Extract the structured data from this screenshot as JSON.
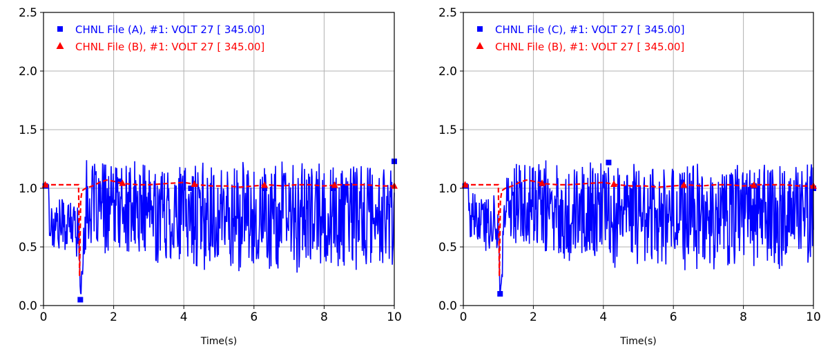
{
  "chart_data": [
    {
      "type": "line",
      "title": "",
      "xlabel": "Time(s)",
      "ylabel": "",
      "xlim": [
        0,
        10
      ],
      "ylim": [
        0,
        2.5
      ],
      "xticks": [
        0,
        2,
        4,
        6,
        8,
        10
      ],
      "xtick_labels": [
        "0",
        "2",
        "4",
        "6",
        "8",
        "10"
      ],
      "yticks": [
        0.0,
        0.5,
        1.0,
        1.5,
        2.0,
        2.5
      ],
      "ytick_labels": [
        "0.0",
        "0.5",
        "1.0",
        "1.5",
        "2.0",
        "2.5"
      ],
      "grid": true,
      "legend_position": "top-left",
      "series": [
        {
          "name": "CHNL File (A), #1: VOLT 27 [ 345.00]",
          "color": "#0000ff",
          "marker": "square",
          "linestyle": "solid",
          "noise_band": {
            "t": [
              0.0,
              0.2,
              1.0,
              1.05,
              1.2,
              2.0,
              4.0,
              6.0,
              8.0,
              10.0
            ],
            "center": [
              1.03,
              0.7,
              0.68,
              0.05,
              0.85,
              0.82,
              0.78,
              0.76,
              0.76,
              0.76
            ],
            "amplitude": [
              0.0,
              0.22,
              0.22,
              0.0,
              0.35,
              0.38,
              0.42,
              0.44,
              0.44,
              0.44
            ]
          },
          "markers": [
            [
              0.05,
              1.02
            ],
            [
              1.05,
              0.05
            ],
            [
              2.15,
              1.06
            ],
            [
              4.2,
              1.0
            ],
            [
              6.3,
              1.0
            ],
            [
              8.25,
              1.0
            ],
            [
              10.0,
              1.23
            ]
          ]
        },
        {
          "name": "CHNL File (B), #1: VOLT 27 [ 345.00]",
          "color": "#ff0000",
          "marker": "triangle",
          "linestyle": "dashed",
          "x": [
            0.0,
            1.0,
            1.03,
            1.06,
            1.1,
            1.2,
            1.4,
            1.6,
            1.8,
            2.0,
            2.3,
            2.7,
            3.0,
            3.5,
            4.0,
            4.4,
            4.8,
            5.2,
            5.6,
            6.0,
            6.4,
            6.8,
            7.2,
            7.6,
            8.0,
            8.4,
            8.8,
            9.2,
            9.6,
            10.0
          ],
          "y": [
            1.03,
            1.03,
            0.25,
            0.9,
            0.98,
            1.0,
            1.02,
            1.05,
            1.07,
            1.06,
            1.04,
            1.03,
            1.03,
            1.04,
            1.05,
            1.03,
            1.02,
            1.02,
            1.01,
            1.02,
            1.03,
            1.02,
            1.03,
            1.03,
            1.02,
            1.03,
            1.03,
            1.03,
            1.02,
            1.02
          ],
          "marker_x": [
            0.05,
            2.25,
            4.3,
            6.3,
            8.3,
            10.0
          ]
        }
      ]
    },
    {
      "type": "line",
      "title": "",
      "xlabel": "Time(s)",
      "ylabel": "",
      "xlim": [
        0,
        10
      ],
      "ylim": [
        0,
        2.5
      ],
      "xticks": [
        0,
        2,
        4,
        6,
        8,
        10
      ],
      "xtick_labels": [
        "0",
        "2",
        "4",
        "6",
        "8",
        "10"
      ],
      "yticks": [
        0.0,
        0.5,
        1.0,
        1.5,
        2.0,
        2.5
      ],
      "ytick_labels": [
        "0.0",
        "0.5",
        "1.0",
        "1.5",
        "2.0",
        "2.5"
      ],
      "grid": true,
      "legend_position": "top-left",
      "series": [
        {
          "name": "CHNL File (C), #1: VOLT 27 [ 345.00]",
          "color": "#0000ff",
          "marker": "square",
          "linestyle": "solid",
          "noise_band": {
            "t": [
              0.0,
              0.2,
              1.0,
              1.05,
              1.2,
              2.0,
              4.0,
              6.0,
              8.0,
              10.0
            ],
            "center": [
              1.03,
              0.72,
              0.7,
              0.08,
              0.86,
              0.84,
              0.8,
              0.79,
              0.79,
              0.79
            ],
            "amplitude": [
              0.0,
              0.2,
              0.2,
              0.0,
              0.33,
              0.36,
              0.42,
              0.44,
              0.44,
              0.44
            ]
          },
          "markers": [
            [
              0.05,
              1.02
            ],
            [
              1.05,
              0.1
            ],
            [
              2.2,
              1.04
            ],
            [
              4.15,
              1.22
            ],
            [
              6.25,
              1.05
            ],
            [
              8.3,
              1.02
            ],
            [
              10.0,
              1.0
            ]
          ]
        },
        {
          "name": "CHNL File (B), #1: VOLT 27 [ 345.00]",
          "color": "#ff0000",
          "marker": "triangle",
          "linestyle": "dashed",
          "x": [
            0.0,
            1.0,
            1.03,
            1.06,
            1.1,
            1.2,
            1.4,
            1.6,
            1.8,
            2.0,
            2.3,
            2.7,
            3.0,
            3.5,
            4.0,
            4.4,
            4.8,
            5.2,
            5.6,
            6.0,
            6.4,
            6.8,
            7.2,
            7.6,
            8.0,
            8.4,
            8.8,
            9.2,
            9.6,
            10.0
          ],
          "y": [
            1.03,
            1.03,
            0.25,
            0.9,
            0.98,
            1.0,
            1.02,
            1.05,
            1.07,
            1.06,
            1.04,
            1.03,
            1.03,
            1.04,
            1.05,
            1.03,
            1.02,
            1.02,
            1.01,
            1.02,
            1.03,
            1.02,
            1.03,
            1.03,
            1.02,
            1.03,
            1.03,
            1.03,
            1.02,
            1.02
          ],
          "marker_x": [
            0.05,
            2.25,
            4.3,
            6.3,
            8.3,
            10.0
          ]
        }
      ]
    }
  ]
}
